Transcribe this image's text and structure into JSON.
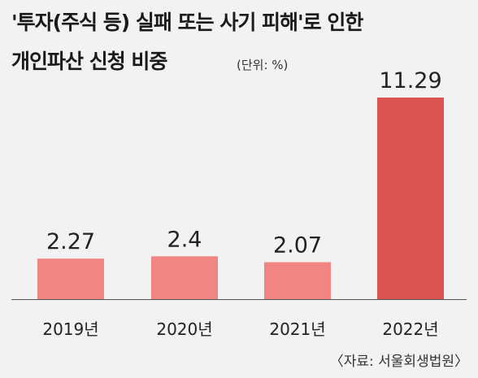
{
  "title": {
    "line1": "'투자(주식 등) 실패 또는 사기 피해'로 인한",
    "line2": "개인파산 신청 비중"
  },
  "unit_label": "(단위: %)",
  "source": "〈자료: 서울회생법원〉",
  "colors": {
    "bar_regular": "#f18583",
    "bar_highlight": "#dc5353",
    "baseline": "#555555",
    "background": "#f2f2f2"
  },
  "chart_data": {
    "type": "bar",
    "title": "'투자(주식 등) 실패 또는 사기 피해'로 인한 개인파산 신청 비중",
    "categories": [
      "2019년",
      "2020년",
      "2021년",
      "2022년"
    ],
    "values": [
      2.27,
      2.4,
      2.07,
      11.29
    ],
    "value_labels": [
      "2.27",
      "2.4",
      "2.07",
      "11.29"
    ],
    "highlight_index": 3,
    "ylim": [
      0,
      11.29
    ],
    "unit": "%",
    "grid": false,
    "legend": "none"
  }
}
